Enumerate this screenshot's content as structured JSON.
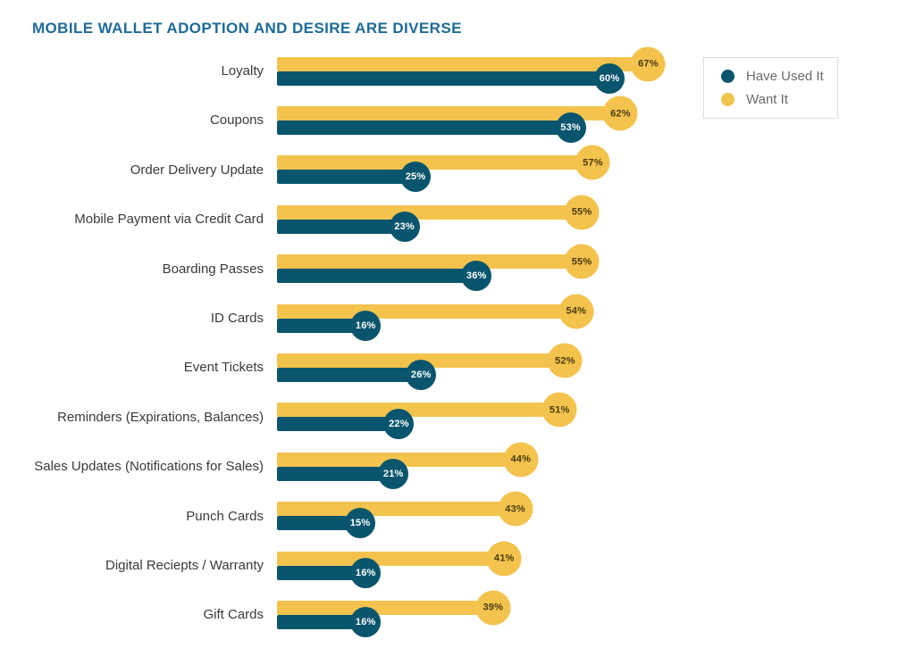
{
  "title": "MOBILE WALLET ADOPTION AND DESIRE ARE DIVERSE",
  "legend": {
    "items": [
      {
        "label": "Have Used It",
        "color": "#09556d"
      },
      {
        "label": "Want It",
        "color": "#f3c34e"
      }
    ]
  },
  "colors": {
    "title": "#1e6b99",
    "have_used": "#09556d",
    "want": "#f3c34e",
    "want_bubble_text": "#493a10",
    "used_bubble_text": "#ffffff",
    "category_label": "#3a3a3a",
    "legend_border": "#dcdcdc"
  },
  "chart_data": {
    "type": "bar",
    "orientation": "horizontal",
    "title": "MOBILE WALLET ADOPTION AND DESIRE ARE DIVERSE",
    "xlabel": "",
    "ylabel": "",
    "xlim": [
      0,
      100
    ],
    "grid": false,
    "legend_position": "top-right",
    "value_suffix": "%",
    "categories": [
      "Loyalty",
      "Coupons",
      "Order Delivery Update",
      "Mobile Payment via Credit Card",
      "Boarding Passes",
      "ID Cards",
      "Event Tickets",
      "Reminders (Expirations, Balances)",
      "Sales Updates (Notifications for Sales)",
      "Punch Cards",
      "Digital Reciepts / Warranty",
      "Gift Cards"
    ],
    "series": [
      {
        "name": "Have Used It",
        "color": "#09556d",
        "values": [
          60,
          53,
          25,
          23,
          36,
          16,
          26,
          22,
          21,
          15,
          16,
          16
        ]
      },
      {
        "name": "Want It",
        "color": "#f3c34e",
        "values": [
          67,
          62,
          57,
          55,
          55,
          54,
          52,
          51,
          44,
          43,
          41,
          39
        ]
      }
    ]
  }
}
